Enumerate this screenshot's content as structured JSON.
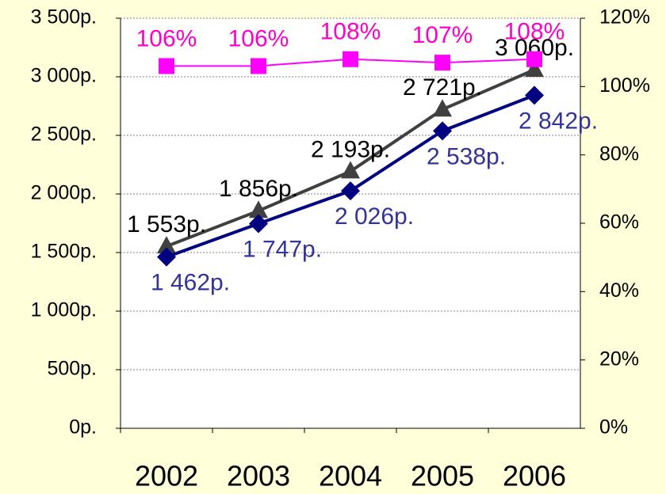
{
  "chart_data": {
    "type": "line",
    "categories": [
      "2002",
      "2003",
      "2004",
      "2005",
      "2006"
    ],
    "series": [
      {
        "name": "gray",
        "color": "#404040",
        "label_color": "#000000",
        "marker": "triangle",
        "values": [
          1553,
          1856,
          2193,
          2721,
          3060
        ],
        "value_labels": [
          "1 553р.",
          "1 856р.",
          "2 193р.",
          "2 721р.",
          "3 060р."
        ]
      },
      {
        "name": "navy",
        "color": "#000080",
        "label_color": "#333399",
        "marker": "diamond",
        "values": [
          1462,
          1747,
          2026,
          2538,
          2842
        ],
        "value_labels": [
          "1 462р.",
          "1 747р.",
          "2 026р.",
          "2 538р.",
          "2 842р."
        ]
      },
      {
        "name": "magenta",
        "color": "#ff00ff",
        "label_color": "#ff00cc",
        "marker": "square",
        "axis": "y2",
        "values": [
          106,
          106,
          108,
          107,
          108
        ],
        "value_labels": [
          "106%",
          "106%",
          "108%",
          "107%",
          "108%"
        ]
      }
    ],
    "ylim": [
      0,
      3500
    ],
    "yticks": [
      {
        "value": 0,
        "label": "0р."
      },
      {
        "value": 500,
        "label": "500р."
      },
      {
        "value": 1000,
        "label": "1 000р."
      },
      {
        "value": 1500,
        "label": "1 500р."
      },
      {
        "value": 2000,
        "label": "2 000р."
      },
      {
        "value": 2500,
        "label": "2 500р."
      },
      {
        "value": 3000,
        "label": "3 000р."
      },
      {
        "value": 3500,
        "label": "3 500р."
      }
    ],
    "y2lim": [
      0,
      120
    ],
    "y2ticks": [
      {
        "value": 0,
        "label": "0%"
      },
      {
        "value": 20,
        "label": "20%"
      },
      {
        "value": 40,
        "label": "40%"
      },
      {
        "value": 60,
        "label": "60%"
      },
      {
        "value": 80,
        "label": "80%"
      },
      {
        "value": 100,
        "label": "100%"
      },
      {
        "value": 120,
        "label": "120%"
      }
    ],
    "grid": true
  }
}
